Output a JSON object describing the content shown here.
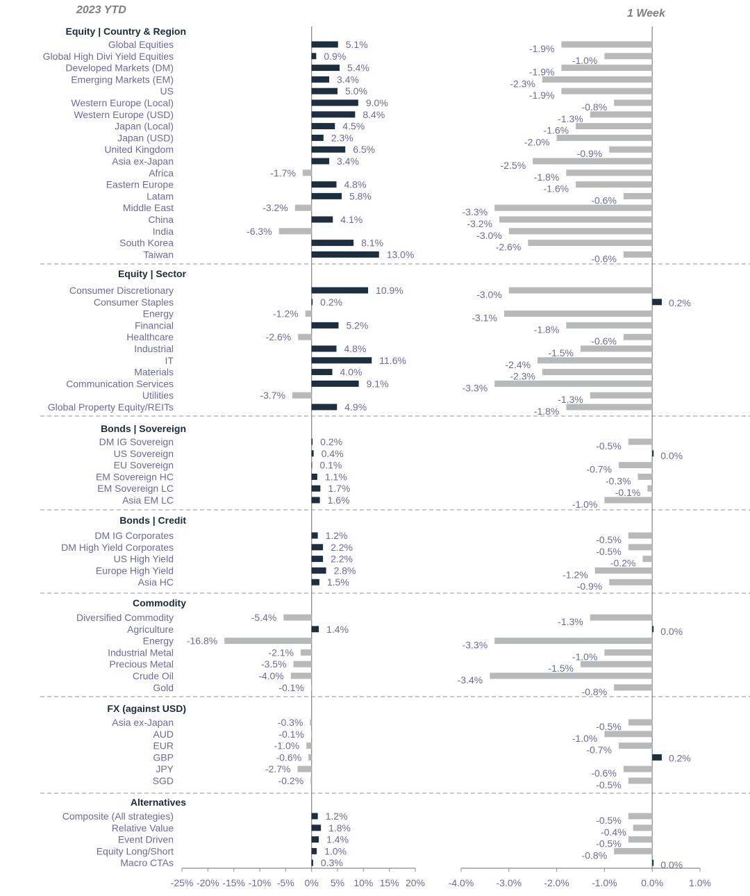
{
  "headers": {
    "left": "2023 YTD",
    "right": "1 Week"
  },
  "colors": {
    "positive": "#1c2e40",
    "negative": "#b8b9bb",
    "label": "#6d6a9c",
    "section": "#1a2b3c",
    "axis": "#8c8c8c",
    "divider": "#a6a6a6"
  },
  "chart_data": [
    {
      "type": "bar",
      "orientation": "horizontal",
      "title": "2023 YTD",
      "value_format": "percent, 1 decimal",
      "xlim": [
        -25,
        20
      ],
      "x_ticks": [
        "-25%",
        "-20%",
        "-15%",
        "-10%",
        "-5%",
        "0%",
        "5%",
        "10%",
        "15%",
        "20%"
      ],
      "grid": false,
      "sections": [
        {
          "name": "Equity | Country & Region",
          "items": [
            [
              "Global Equities",
              5.1
            ],
            [
              "Global High Divi Yield Equities",
              0.9
            ],
            [
              "Developed Markets (DM)",
              5.4
            ],
            [
              "Emerging Markets (EM)",
              3.4
            ],
            [
              "US",
              5.0
            ],
            [
              "Western Europe (Local)",
              9.0
            ],
            [
              "Western Europe (USD)",
              8.4
            ],
            [
              "Japan (Local)",
              4.5
            ],
            [
              "Japan (USD)",
              2.3
            ],
            [
              "United Kingdom",
              6.5
            ],
            [
              "Asia ex-Japan",
              3.4
            ],
            [
              "Africa",
              -1.7
            ],
            [
              "Eastern Europe",
              4.8
            ],
            [
              "Latam",
              5.8
            ],
            [
              "Middle East",
              -3.2
            ],
            [
              "China",
              4.1
            ],
            [
              "India",
              -6.3
            ],
            [
              "South Korea",
              8.1
            ],
            [
              "Taiwan",
              13.0
            ]
          ]
        },
        {
          "name": "Equity | Sector",
          "items": [
            [
              "Consumer Discretionary",
              10.9
            ],
            [
              "Consumer Staples",
              0.2
            ],
            [
              "Energy",
              -1.2
            ],
            [
              "Financial",
              5.2
            ],
            [
              "Healthcare",
              -2.6
            ],
            [
              "Industrial",
              4.8
            ],
            [
              "IT",
              11.6
            ],
            [
              "Materials",
              4.0
            ],
            [
              "Communication Services",
              9.1
            ],
            [
              "Utilities",
              -3.7
            ],
            [
              "Global Property Equity/REITs",
              4.9
            ]
          ]
        },
        {
          "name": "Bonds | Sovereign",
          "items": [
            [
              "DM IG Sovereign",
              0.2
            ],
            [
              "US Sovereign",
              0.4
            ],
            [
              "EU Sovereign",
              0.1
            ],
            [
              "EM Sovereign HC",
              1.1
            ],
            [
              "EM Sovereign LC",
              1.7
            ],
            [
              "Asia EM LC",
              1.6
            ]
          ]
        },
        {
          "name": "Bonds | Credit",
          "items": [
            [
              "DM IG Corporates",
              1.2
            ],
            [
              "DM High Yield Corporates",
              2.2
            ],
            [
              "US High Yield",
              2.2
            ],
            [
              "Europe High Yield",
              2.8
            ],
            [
              "Asia HC",
              1.5
            ]
          ]
        },
        {
          "name": "Commodity",
          "items": [
            [
              "Diversified Commodity",
              -5.4
            ],
            [
              "Agriculture",
              1.4
            ],
            [
              "Energy",
              -16.8
            ],
            [
              "Industrial Metal",
              -2.1
            ],
            [
              "Precious Metal",
              -3.5
            ],
            [
              "Crude Oil",
              -4.0
            ],
            [
              "Gold",
              -0.1
            ]
          ]
        },
        {
          "name": "FX (against USD)",
          "items": [
            [
              "Asia ex-Japan",
              -0.3
            ],
            [
              "AUD",
              -0.1
            ],
            [
              "EUR",
              -1.0
            ],
            [
              "GBP",
              -0.6
            ],
            [
              "JPY",
              -2.7
            ],
            [
              "SGD",
              -0.2
            ]
          ]
        },
        {
          "name": "Alternatives",
          "items": [
            [
              "Composite (All strategies)",
              1.2
            ],
            [
              "Relative Value",
              1.8
            ],
            [
              "Event Driven",
              1.4
            ],
            [
              "Equity Long/Short",
              1.0
            ],
            [
              "Macro CTAs",
              0.3
            ]
          ]
        }
      ]
    },
    {
      "type": "bar",
      "orientation": "horizontal",
      "title": "1 Week",
      "value_format": "percent, 1 decimal",
      "xlim": [
        -4,
        1
      ],
      "x_ticks": [
        "-4.0%",
        "-3.0%",
        "-2.0%",
        "-1.0%",
        "0.0%",
        "1.0%"
      ],
      "grid": false,
      "sections": [
        {
          "name": "Equity | Country & Region",
          "values": [
            -1.9,
            -1.0,
            -1.9,
            -2.3,
            -1.9,
            -0.8,
            -1.3,
            -1.6,
            -2.0,
            -0.9,
            -2.5,
            -1.8,
            -1.6,
            -0.6,
            -3.3,
            -3.2,
            -3.0,
            -2.6,
            -0.6
          ]
        },
        {
          "name": "Equity | Sector",
          "values": [
            -3.0,
            0.2,
            -3.1,
            -1.8,
            -0.6,
            -1.5,
            -2.4,
            -2.3,
            -3.3,
            -1.3,
            -1.8
          ]
        },
        {
          "name": "Bonds | Sovereign",
          "values": [
            -0.5,
            0.0,
            -0.7,
            -0.3,
            -0.1,
            -1.0
          ]
        },
        {
          "name": "Bonds | Credit",
          "values": [
            -0.5,
            -0.5,
            -0.2,
            -1.2,
            -0.9
          ]
        },
        {
          "name": "Commodity",
          "values": [
            -1.3,
            0.0,
            -3.3,
            -1.0,
            -1.5,
            -3.4,
            -0.8
          ]
        },
        {
          "name": "FX (against USD)",
          "values": [
            -0.5,
            -1.0,
            -0.7,
            0.2,
            -0.6,
            -0.5
          ]
        },
        {
          "name": "Alternatives",
          "values": [
            -0.5,
            -0.4,
            -0.5,
            -0.8,
            0.0
          ]
        }
      ]
    }
  ]
}
